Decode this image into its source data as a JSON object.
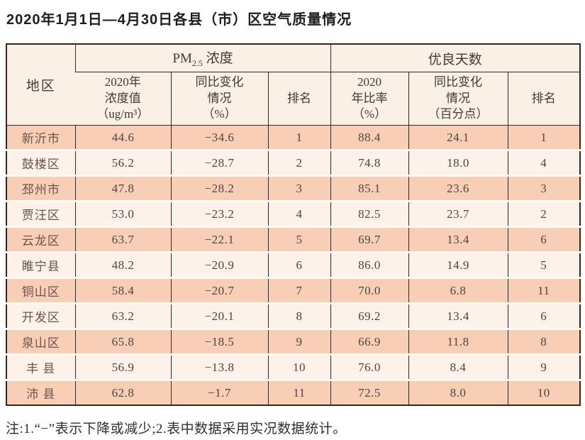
{
  "title": "2020年1月1日—4月30日各县（市）区空气质量情况",
  "note": "注:1.“−”表示下降或减少;2.表中数据采用实况数据统计。",
  "header": {
    "region": "地区",
    "pm_group": {
      "prefix": "PM",
      "sub": "2.5",
      "suffix": " 浓度"
    },
    "days_group": "优良天数",
    "pm_value": "2020年\n浓度值\n（ug/m³）",
    "pm_change": "同比变化\n情况\n（%）",
    "pm_rank": "排名",
    "days_ratio": "2020\n年比率\n（%）",
    "days_change": "同比变化\n情况\n（百分点）",
    "days_rank": "排名"
  },
  "rows": [
    {
      "region": "新沂市",
      "pm_value": "44.6",
      "pm_change": "−34.6",
      "pm_rank": "1",
      "days_ratio": "88.4",
      "days_change": "24.1",
      "days_rank": "1"
    },
    {
      "region": "鼓楼区",
      "pm_value": "56.2",
      "pm_change": "−28.7",
      "pm_rank": "2",
      "days_ratio": "74.8",
      "days_change": "18.0",
      "days_rank": "4"
    },
    {
      "region": "邳州市",
      "pm_value": "47.8",
      "pm_change": "−28.2",
      "pm_rank": "3",
      "days_ratio": "85.1",
      "days_change": "23.6",
      "days_rank": "3"
    },
    {
      "region": "贾汪区",
      "pm_value": "53.0",
      "pm_change": "−23.2",
      "pm_rank": "4",
      "days_ratio": "82.5",
      "days_change": "23.7",
      "days_rank": "2"
    },
    {
      "region": "云龙区",
      "pm_value": "63.7",
      "pm_change": "−22.1",
      "pm_rank": "5",
      "days_ratio": "69.7",
      "days_change": "13.4",
      "days_rank": "6"
    },
    {
      "region": "睢宁县",
      "pm_value": "48.2",
      "pm_change": "−20.9",
      "pm_rank": "6",
      "days_ratio": "86.0",
      "days_change": "14.9",
      "days_rank": "5"
    },
    {
      "region": "铜山区",
      "pm_value": "58.4",
      "pm_change": "−20.7",
      "pm_rank": "7",
      "days_ratio": "70.0",
      "days_change": "6.8",
      "days_rank": "11"
    },
    {
      "region": "开发区",
      "pm_value": "63.2",
      "pm_change": "−20.1",
      "pm_rank": "8",
      "days_ratio": "69.2",
      "days_change": "13.4",
      "days_rank": "6"
    },
    {
      "region": "泉山区",
      "pm_value": "65.8",
      "pm_change": "−18.5",
      "pm_rank": "9",
      "days_ratio": "66.9",
      "days_change": "11.8",
      "days_rank": "8"
    },
    {
      "region": "丰 县",
      "pm_value": "56.9",
      "pm_change": "−13.8",
      "pm_rank": "10",
      "days_ratio": "76.0",
      "days_change": "8.4",
      "days_rank": "9"
    },
    {
      "region": "沛 县",
      "pm_value": "62.8",
      "pm_change": "−1.7",
      "pm_rank": "11",
      "days_ratio": "72.5",
      "days_change": "8.0",
      "days_rank": "10"
    }
  ],
  "colors": {
    "border": "#36261e",
    "header_bg": "#fbf0e6",
    "row_shade": "#f9ceb6",
    "row_light": "#fdf2ea",
    "row_gap": "#fef8f3"
  },
  "chart_data": {
    "type": "table",
    "title": "2020年1月1日—4月30日各县（市）区空气质量情况",
    "column_groups": [
      {
        "label": "PM2.5浓度",
        "span": 3
      },
      {
        "label": "优良天数",
        "span": 3
      }
    ],
    "columns": [
      "地区",
      "2020年浓度值（ug/m³）",
      "同比变化情况（%）",
      "排名",
      "2020年比率（%）",
      "同比变化情况（百分点）",
      "排名"
    ],
    "rows": [
      [
        "新沂市",
        44.6,
        -34.6,
        1,
        88.4,
        24.1,
        1
      ],
      [
        "鼓楼区",
        56.2,
        -28.7,
        2,
        74.8,
        18.0,
        4
      ],
      [
        "邳州市",
        47.8,
        -28.2,
        3,
        85.1,
        23.6,
        3
      ],
      [
        "贾汪区",
        53.0,
        -23.2,
        4,
        82.5,
        23.7,
        2
      ],
      [
        "云龙区",
        63.7,
        -22.1,
        5,
        69.7,
        13.4,
        6
      ],
      [
        "睢宁县",
        48.2,
        -20.9,
        6,
        86.0,
        14.9,
        5
      ],
      [
        "铜山区",
        58.4,
        -20.7,
        7,
        70.0,
        6.8,
        11
      ],
      [
        "开发区",
        63.2,
        -20.1,
        8,
        69.2,
        13.4,
        6
      ],
      [
        "泉山区",
        65.8,
        -18.5,
        9,
        66.9,
        11.8,
        8
      ],
      [
        "丰县",
        56.9,
        -13.8,
        10,
        76.0,
        8.4,
        9
      ],
      [
        "沛县",
        62.8,
        -1.7,
        11,
        72.5,
        8.0,
        10
      ]
    ],
    "note": "注:1.“−”表示下降或减少;2.表中数据采用实况数据统计。"
  }
}
